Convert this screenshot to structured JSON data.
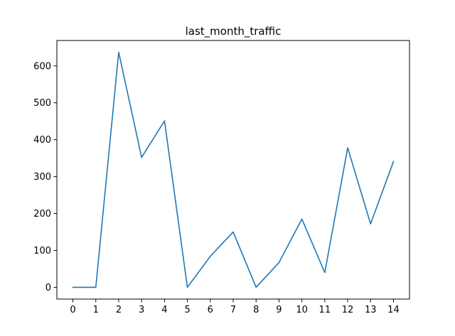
{
  "chart_data": {
    "type": "line",
    "title": "last_month_traffic",
    "xlabel": "",
    "ylabel": "",
    "x": [
      0,
      1,
      2,
      3,
      4,
      5,
      6,
      7,
      8,
      9,
      10,
      11,
      12,
      13,
      14
    ],
    "series": [
      {
        "values": [
          0,
          0,
          637,
          352,
          451,
          0,
          84,
          150,
          0,
          67,
          185,
          40,
          378,
          172,
          341
        ],
        "color": "#1f77b4"
      }
    ],
    "xticks": [
      "0",
      "1",
      "2",
      "3",
      "4",
      "5",
      "6",
      "7",
      "8",
      "9",
      "10",
      "11",
      "12",
      "13",
      "14"
    ],
    "yticks": [
      "0",
      "100",
      "200",
      "300",
      "400",
      "500",
      "600"
    ],
    "xlim": [
      -0.7,
      14.7
    ],
    "ylim": [
      -31.85,
      668.85
    ],
    "grid": false,
    "legend": "none"
  }
}
